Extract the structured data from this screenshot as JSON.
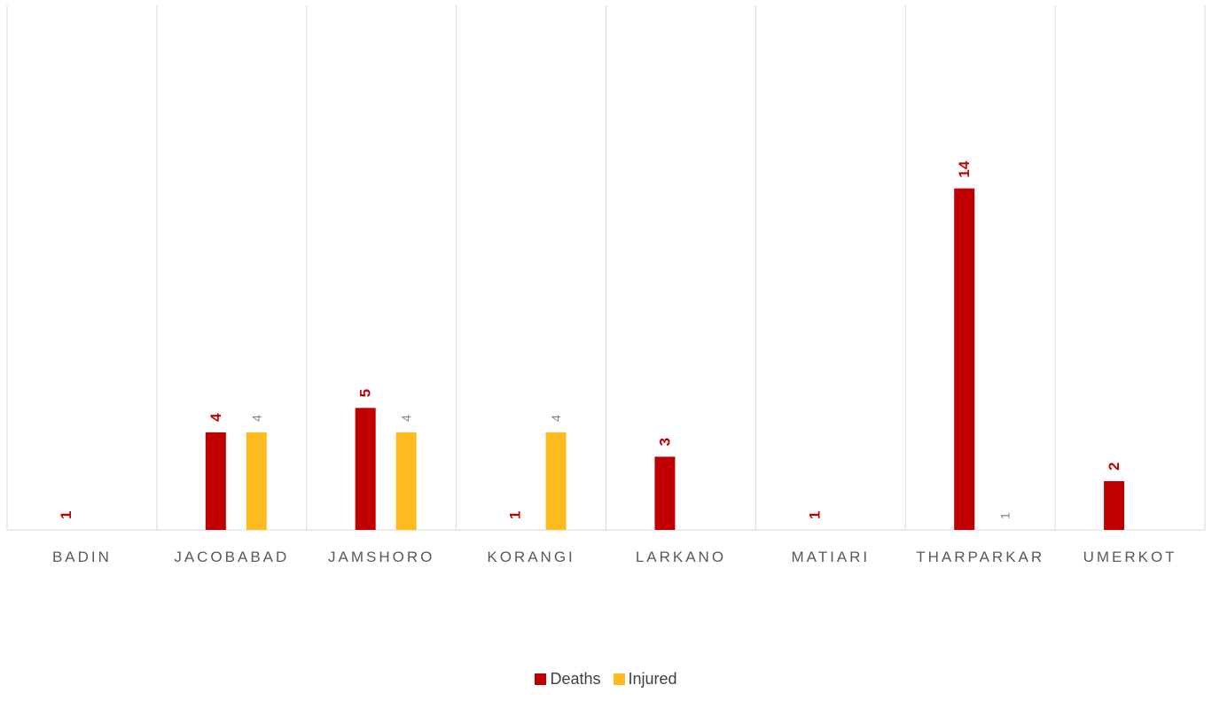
{
  "chart_data": {
    "type": "bar",
    "categories": [
      "BADIN",
      "JACOBABAD",
      "JAMSHORO",
      "KORANGI",
      "LARKANO",
      "MATIARI",
      "THARPARKAR",
      "UMERKOT"
    ],
    "series": [
      {
        "name": "Deaths",
        "color": "#C00000",
        "label_color": "#C00000",
        "values": [
          1,
          4,
          5,
          1,
          3,
          1,
          14,
          2
        ]
      },
      {
        "name": "Injured",
        "color": "#FDBB1E",
        "label_color": "#808080",
        "values": [
          null,
          4,
          4,
          4,
          null,
          null,
          1,
          null
        ]
      }
    ],
    "ylim": [
      0,
      20
    ],
    "grid": "vertical category separators",
    "legend_position": "bottom-center",
    "data_labels": "rotated -90 degrees above bars"
  }
}
